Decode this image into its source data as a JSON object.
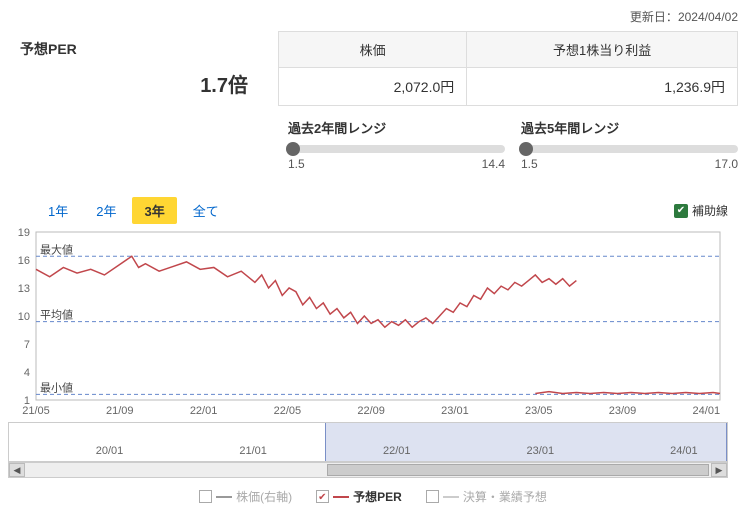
{
  "update_label": "更新日：",
  "update_date": "2024/04/02",
  "per": {
    "label": "予想PER",
    "value": "1.7倍"
  },
  "table": {
    "h1": "株価",
    "h2": "予想1株当り利益",
    "v1": "2,072.0円",
    "v2": "1,236.9円"
  },
  "ranges": {
    "r2y": {
      "label": "過去2年間レンジ",
      "min": "1.5",
      "max": "14.4"
    },
    "r5y": {
      "label": "過去5年間レンジ",
      "min": "1.5",
      "max": "17.0"
    }
  },
  "tabs": {
    "t1": "1年",
    "t2": "2年",
    "t3": "3年",
    "t4": "全て",
    "active": "3年"
  },
  "aux": {
    "label": "補助線"
  },
  "chart": {
    "yticks": [
      1,
      4,
      7,
      10,
      13,
      16,
      19
    ],
    "ylim": [
      1,
      19
    ],
    "xticks": [
      "21/05",
      "21/09",
      "22/01",
      "22/05",
      "22/09",
      "23/01",
      "23/05",
      "23/09",
      "24/01"
    ],
    "ref_max": {
      "label": "最大値",
      "y": 16.4
    },
    "ref_avg": {
      "label": "平均値",
      "y": 9.4
    },
    "ref_min": {
      "label": "最小値",
      "y": 1.6
    },
    "series": [
      [
        0,
        15
      ],
      [
        2,
        14.2
      ],
      [
        4,
        15.2
      ],
      [
        6,
        14.6
      ],
      [
        8,
        15
      ],
      [
        10,
        14.4
      ],
      [
        12,
        15.4
      ],
      [
        14,
        16.4
      ],
      [
        15,
        15.2
      ],
      [
        16,
        15.6
      ],
      [
        18,
        14.8
      ],
      [
        20,
        15.3
      ],
      [
        22,
        15.8
      ],
      [
        24,
        15
      ],
      [
        26,
        15.2
      ],
      [
        28,
        14.2
      ],
      [
        30,
        14.8
      ],
      [
        32,
        13.6
      ],
      [
        33,
        14.4
      ],
      [
        34,
        13
      ],
      [
        35,
        13.8
      ],
      [
        36,
        12.2
      ],
      [
        37,
        13
      ],
      [
        38,
        12.6
      ],
      [
        39,
        11.2
      ],
      [
        40,
        12
      ],
      [
        41,
        10.8
      ],
      [
        42,
        11.4
      ],
      [
        43,
        10.2
      ],
      [
        44,
        10.8
      ],
      [
        45,
        9.8
      ],
      [
        46,
        10.4
      ],
      [
        47,
        9.2
      ],
      [
        48,
        10
      ],
      [
        49,
        9.2
      ],
      [
        50,
        9.6
      ],
      [
        51,
        8.8
      ],
      [
        52,
        9.4
      ],
      [
        53,
        9
      ],
      [
        54,
        9.6
      ],
      [
        55,
        8.8
      ],
      [
        56,
        9.4
      ],
      [
        57,
        9.8
      ],
      [
        58,
        9.2
      ],
      [
        59,
        10
      ],
      [
        60,
        10.8
      ],
      [
        61,
        10.4
      ],
      [
        62,
        11.4
      ],
      [
        63,
        11
      ],
      [
        64,
        12.2
      ],
      [
        65,
        11.8
      ],
      [
        66,
        13
      ],
      [
        67,
        12.4
      ],
      [
        68,
        13.2
      ],
      [
        69,
        12.8
      ],
      [
        70,
        13.6
      ],
      [
        71,
        13.2
      ],
      [
        72,
        13.8
      ],
      [
        73,
        14.4
      ],
      [
        74,
        13.6
      ],
      [
        75,
        14
      ],
      [
        76,
        13.4
      ],
      [
        77,
        14
      ],
      [
        78,
        13.2
      ],
      [
        79,
        13.8
      ]
    ],
    "series2": [
      [
        73,
        1.7
      ],
      [
        75,
        1.9
      ],
      [
        77,
        1.7
      ],
      [
        79,
        1.8
      ],
      [
        81,
        1.7
      ],
      [
        83,
        1.8
      ],
      [
        85,
        1.7
      ],
      [
        87,
        1.8
      ],
      [
        89,
        1.7
      ],
      [
        91,
        1.8
      ],
      [
        93,
        1.7
      ],
      [
        95,
        1.8
      ],
      [
        97,
        1.7
      ],
      [
        99,
        1.8
      ],
      [
        100,
        1.7
      ]
    ],
    "line_color": "#c1474c",
    "ref_color": "#6688cc",
    "bg": "#ffffff"
  },
  "nav": {
    "ticks": [
      {
        "label": "20/01",
        "pct": 14
      },
      {
        "label": "21/01",
        "pct": 34
      },
      {
        "label": "22/01",
        "pct": 54
      },
      {
        "label": "23/01",
        "pct": 74
      },
      {
        "label": "24/01",
        "pct": 94
      }
    ],
    "sel_left_pct": 44,
    "sel_right_pct": 100
  },
  "legend": {
    "i1": {
      "label": "株価(右軸)",
      "color": "#999999",
      "checked": false
    },
    "i2": {
      "label": "予想PER",
      "color": "#c1474c",
      "checked": true
    },
    "i3": {
      "label": "決算・業績予想",
      "color": "#cccccc",
      "checked": false
    }
  }
}
